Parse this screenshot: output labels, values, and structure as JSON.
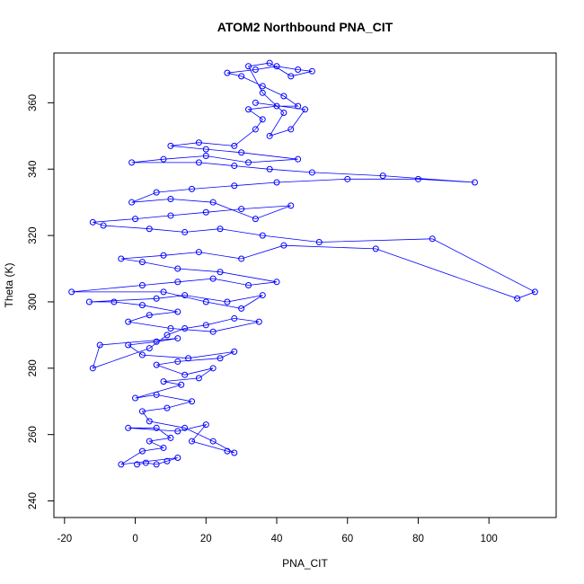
{
  "chart_data": {
    "type": "scatter",
    "title": "ATOM2 Northbound PNA_CIT",
    "xlabel": "PNA_CIT",
    "ylabel": "Theta (K)",
    "xlim": [
      -23,
      119
    ],
    "ylim": [
      235,
      375
    ],
    "x_ticks": [
      -20,
      0,
      20,
      40,
      60,
      80,
      100
    ],
    "y_ticks": [
      240,
      260,
      280,
      300,
      320,
      340,
      360
    ],
    "marker": "open-circle",
    "connected": true,
    "grid": false,
    "color": "#0000ff",
    "series": [
      {
        "points": [
          [
            0.5,
            251
          ],
          [
            3,
            251.5
          ],
          [
            6,
            251
          ],
          [
            9,
            252
          ],
          [
            12,
            253
          ],
          [
            -4,
            251
          ],
          [
            2,
            255
          ],
          [
            8,
            256
          ],
          [
            4,
            258
          ],
          [
            10,
            259
          ],
          [
            6,
            262
          ],
          [
            -2,
            262
          ],
          [
            12,
            261
          ],
          [
            20,
            263
          ],
          [
            16,
            258
          ],
          [
            26,
            255
          ],
          [
            28,
            254.5
          ],
          [
            22,
            258
          ],
          [
            14,
            262
          ],
          [
            4,
            264
          ],
          [
            2,
            267
          ],
          [
            9,
            268
          ],
          [
            16,
            270
          ],
          [
            6,
            272
          ],
          [
            0,
            271
          ],
          [
            13,
            275
          ],
          [
            8,
            276
          ],
          [
            18,
            277
          ],
          [
            22,
            280
          ],
          [
            14,
            278
          ],
          [
            6,
            281
          ],
          [
            12,
            282
          ],
          [
            24,
            283
          ],
          [
            28,
            285
          ],
          [
            15,
            283
          ],
          [
            2,
            284
          ],
          [
            -2,
            287
          ],
          [
            6,
            288
          ],
          [
            12,
            289
          ],
          [
            -10,
            287
          ],
          [
            -12,
            280
          ],
          [
            4,
            286
          ],
          [
            9,
            290
          ],
          [
            14,
            292
          ],
          [
            20,
            293
          ],
          [
            28,
            295
          ],
          [
            35,
            294
          ],
          [
            22,
            291
          ],
          [
            10,
            292
          ],
          [
            -2,
            294
          ],
          [
            4,
            296
          ],
          [
            12,
            297
          ],
          [
            2,
            299
          ],
          [
            -6,
            300
          ],
          [
            -13,
            300
          ],
          [
            6,
            301
          ],
          [
            14,
            302
          ],
          [
            26,
            300
          ],
          [
            36,
            302
          ],
          [
            30,
            298
          ],
          [
            20,
            300
          ],
          [
            8,
            303
          ],
          [
            -18,
            303
          ],
          [
            2,
            305
          ],
          [
            12,
            306
          ],
          [
            22,
            307
          ],
          [
            32,
            305
          ],
          [
            40,
            306
          ],
          [
            24,
            309
          ],
          [
            12,
            310
          ],
          [
            2,
            312
          ],
          [
            -4,
            313
          ],
          [
            8,
            314
          ],
          [
            18,
            315
          ],
          [
            30,
            313
          ],
          [
            42,
            317
          ],
          [
            68,
            316
          ],
          [
            108,
            301
          ],
          [
            113,
            303
          ],
          [
            84,
            319
          ],
          [
            52,
            318
          ],
          [
            36,
            320
          ],
          [
            24,
            322
          ],
          [
            14,
            321
          ],
          [
            4,
            322
          ],
          [
            -9,
            323
          ],
          [
            -12,
            324
          ],
          [
            0,
            325
          ],
          [
            10,
            326
          ],
          [
            20,
            327
          ],
          [
            30,
            328
          ],
          [
            44,
            329
          ],
          [
            34,
            325
          ],
          [
            22,
            330
          ],
          [
            10,
            331
          ],
          [
            -1,
            330
          ],
          [
            6,
            333
          ],
          [
            16,
            334
          ],
          [
            28,
            335
          ],
          [
            40,
            336
          ],
          [
            60,
            337
          ],
          [
            80,
            337
          ],
          [
            96,
            336
          ],
          [
            70,
            338
          ],
          [
            50,
            339
          ],
          [
            38,
            340
          ],
          [
            28,
            341
          ],
          [
            18,
            342
          ],
          [
            -1,
            342
          ],
          [
            8,
            343
          ],
          [
            20,
            344
          ],
          [
            32,
            342
          ],
          [
            46,
            343
          ],
          [
            30,
            345
          ],
          [
            20,
            346
          ],
          [
            10,
            347
          ],
          [
            18,
            348
          ],
          [
            28,
            347
          ],
          [
            34,
            352
          ],
          [
            36,
            355
          ],
          [
            32,
            358
          ],
          [
            40,
            359
          ],
          [
            46,
            359
          ],
          [
            42,
            362
          ],
          [
            36,
            365
          ],
          [
            30,
            368
          ],
          [
            26,
            369
          ],
          [
            34,
            370
          ],
          [
            40,
            371
          ],
          [
            46,
            370
          ],
          [
            50,
            369.5
          ],
          [
            44,
            368
          ],
          [
            38,
            372
          ],
          [
            32,
            371
          ],
          [
            36,
            363
          ],
          [
            42,
            357
          ],
          [
            38,
            350
          ],
          [
            44,
            352
          ],
          [
            48,
            358
          ],
          [
            34,
            360
          ]
        ]
      }
    ]
  }
}
